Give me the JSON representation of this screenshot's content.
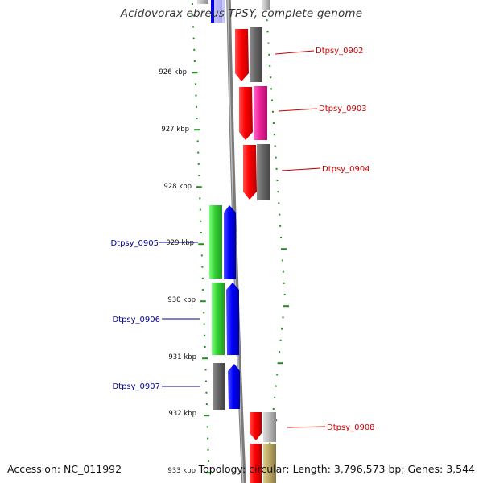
{
  "title": "Acidovorax ebreus TPSY, complete genome",
  "accession": "Accession: NC_011992",
  "summary": "Topology: circular; Length: 3,796,573 bp; Genes: 3,544",
  "ruler": {
    "labels": [
      "926 kbp",
      "927 kbp",
      "928 kbp",
      "929 kbp",
      "930 kbp",
      "931 kbp",
      "932 kbp",
      "933 kbp"
    ],
    "tick_color": "#228B22"
  },
  "genes": [
    {
      "name": "Dtpsy_0902",
      "strand": "forward",
      "color": "#E00000",
      "label_color": "#CC0000"
    },
    {
      "name": "Dtpsy_0903",
      "strand": "forward",
      "color": "#E00000",
      "label_color": "#CC0000"
    },
    {
      "name": "Dtpsy_0904",
      "strand": "forward",
      "color": "#E00000",
      "label_color": "#CC0000"
    },
    {
      "name": "Dtpsy_0905",
      "strand": "reverse",
      "color": "#0000DD",
      "label_color": "#000099"
    },
    {
      "name": "Dtpsy_0906",
      "strand": "reverse",
      "color": "#0000DD",
      "label_color": "#000099"
    },
    {
      "name": "Dtpsy_0907",
      "strand": "reverse",
      "color": "#0000DD",
      "label_color": "#000099"
    },
    {
      "name": "Dtpsy_0908",
      "strand": "forward",
      "color": "#E00000",
      "label_color": "#CC0000"
    }
  ],
  "colors": {
    "cog_grey": "#666666",
    "cog_magenta": "#EE2299",
    "cog_green": "#33CC33",
    "cog_light_grey": "#AAAAAA",
    "cog_khaki": "#BBAA66",
    "backbone": "#888888"
  }
}
